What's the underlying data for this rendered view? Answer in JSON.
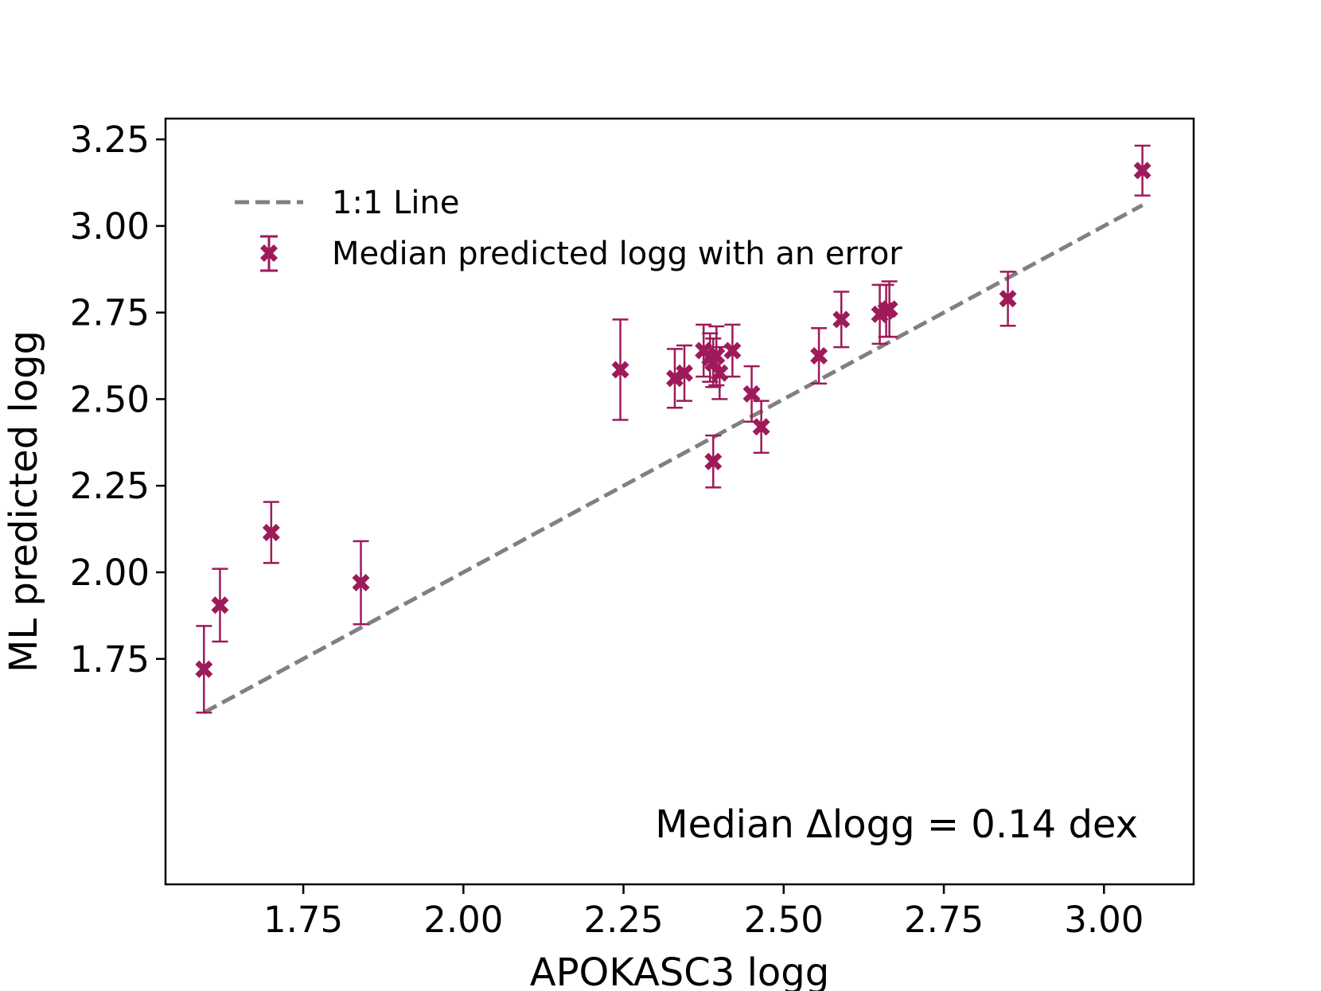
{
  "chart_data": {
    "type": "scatter",
    "title": "",
    "xlabel": "APOKASC3 logg",
    "ylabel": "ML predicted logg",
    "xlim": [
      1.535,
      3.14
    ],
    "ylim": [
      1.099,
      3.31
    ],
    "xticks": [
      1.75,
      2.0,
      2.25,
      2.5,
      2.75,
      3.0
    ],
    "yticks": [
      1.75,
      2.0,
      2.25,
      2.5,
      2.75,
      3.0,
      3.25
    ],
    "xtick_labels": [
      "1.75",
      "2.00",
      "2.25",
      "2.50",
      "2.75",
      "3.00"
    ],
    "ytick_labels": [
      "1.75",
      "2.00",
      "2.25",
      "2.50",
      "2.75",
      "3.00",
      "3.25"
    ],
    "grid": false,
    "legend_position": "top-left",
    "reference_line": {
      "name": "1:1 Line",
      "x": [
        1.595,
        3.06
      ],
      "y": [
        1.595,
        3.06
      ],
      "color": "#808080",
      "style": "dashed"
    },
    "series": [
      {
        "name": "Median predicted logg with an error",
        "color": "#9e1a5a",
        "marker": "X",
        "points": [
          {
            "x": 1.595,
            "y": 1.72,
            "err": 0.125
          },
          {
            "x": 1.62,
            "y": 1.905,
            "err": 0.105
          },
          {
            "x": 1.7,
            "y": 2.115,
            "err": 0.088
          },
          {
            "x": 1.84,
            "y": 1.97,
            "err": 0.12
          },
          {
            "x": 2.245,
            "y": 2.585,
            "err": 0.145
          },
          {
            "x": 2.33,
            "y": 2.56,
            "err": 0.085
          },
          {
            "x": 2.345,
            "y": 2.575,
            "err": 0.08
          },
          {
            "x": 2.375,
            "y": 2.64,
            "err": 0.075
          },
          {
            "x": 2.385,
            "y": 2.62,
            "err": 0.07
          },
          {
            "x": 2.39,
            "y": 2.605,
            "err": 0.07
          },
          {
            "x": 2.395,
            "y": 2.625,
            "err": 0.085
          },
          {
            "x": 2.39,
            "y": 2.32,
            "err": 0.075
          },
          {
            "x": 2.4,
            "y": 2.575,
            "err": 0.075
          },
          {
            "x": 2.42,
            "y": 2.64,
            "err": 0.075
          },
          {
            "x": 2.45,
            "y": 2.515,
            "err": 0.08
          },
          {
            "x": 2.465,
            "y": 2.42,
            "err": 0.075
          },
          {
            "x": 2.555,
            "y": 2.625,
            "err": 0.08
          },
          {
            "x": 2.59,
            "y": 2.73,
            "err": 0.08
          },
          {
            "x": 2.65,
            "y": 2.745,
            "err": 0.085
          },
          {
            "x": 2.66,
            "y": 2.755,
            "err": 0.075
          },
          {
            "x": 2.665,
            "y": 2.76,
            "err": 0.08
          },
          {
            "x": 2.85,
            "y": 2.79,
            "err": 0.078
          },
          {
            "x": 3.06,
            "y": 3.16,
            "err": 0.072
          }
        ]
      }
    ],
    "annotations": [
      {
        "text": "Median Δlogg = 0.14 dex",
        "position": "bottom-right"
      }
    ]
  }
}
